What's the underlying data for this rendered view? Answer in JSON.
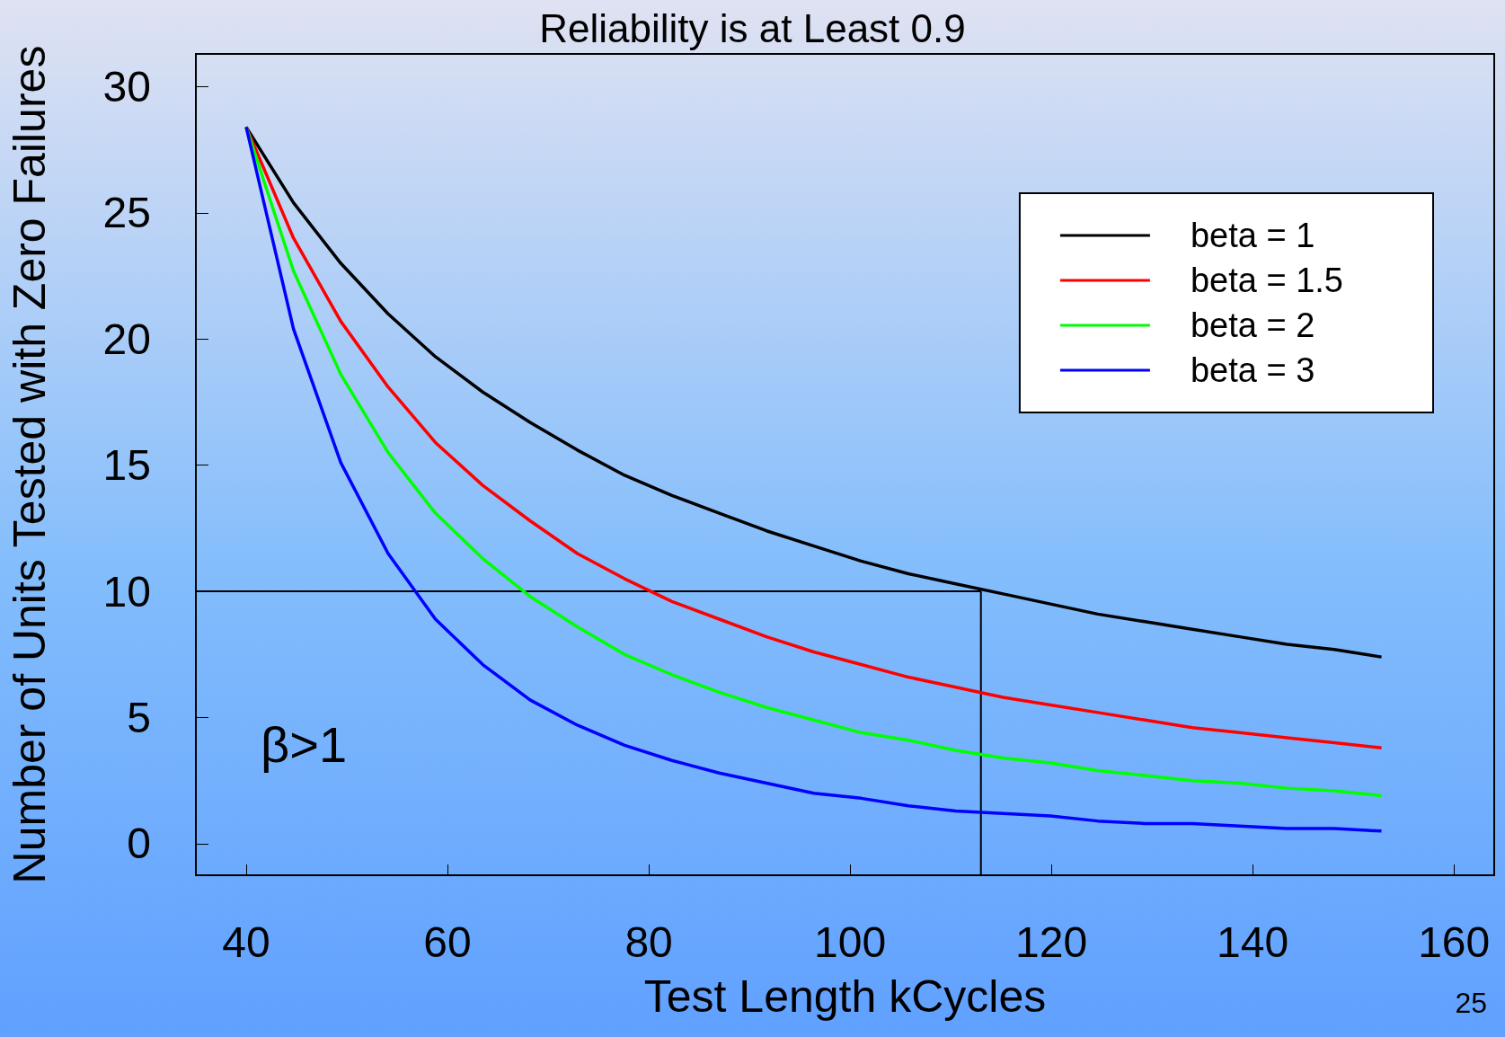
{
  "chart_data": {
    "type": "line",
    "title": "Reliability is at Least 0.9",
    "xlabel": "Test Length kCycles",
    "ylabel": "Number of Units Tested with Zero Failures",
    "x": [
      40,
      44.7,
      49.4,
      54.1,
      58.8,
      63.5,
      68.2,
      72.9,
      77.6,
      82.3,
      87,
      91.7,
      96.4,
      101.1,
      105.8,
      110.5,
      115.2,
      119.9,
      124.6,
      129.3,
      134,
      138.7,
      143.4,
      148.1,
      152.8
    ],
    "series": [
      {
        "name": "beta = 1",
        "color": "#000000",
        "values": [
          28.4,
          25.4,
          23.0,
          21.0,
          19.3,
          17.9,
          16.7,
          15.6,
          14.6,
          13.8,
          13.1,
          12.4,
          11.8,
          11.2,
          10.7,
          10.3,
          9.9,
          9.5,
          9.1,
          8.8,
          8.5,
          8.2,
          7.9,
          7.7,
          7.4
        ]
      },
      {
        "name": "beta = 1.5",
        "color": "#ff0000",
        "values": [
          28.4,
          24.0,
          20.7,
          18.1,
          15.9,
          14.2,
          12.8,
          11.5,
          10.5,
          9.6,
          8.9,
          8.2,
          7.6,
          7.1,
          6.6,
          6.2,
          5.8,
          5.5,
          5.2,
          4.9,
          4.6,
          4.4,
          4.2,
          4.0,
          3.8
        ]
      },
      {
        "name": "beta = 2",
        "color": "#00ff00",
        "values": [
          28.4,
          22.7,
          18.6,
          15.5,
          13.1,
          11.3,
          9.8,
          8.6,
          7.5,
          6.7,
          6.0,
          5.4,
          4.9,
          4.4,
          4.1,
          3.7,
          3.4,
          3.2,
          2.9,
          2.7,
          2.5,
          2.4,
          2.2,
          2.1,
          1.9
        ]
      },
      {
        "name": "beta = 3",
        "color": "#0000ff",
        "values": [
          28.4,
          20.4,
          15.1,
          11.5,
          8.9,
          7.1,
          5.7,
          4.7,
          3.9,
          3.3,
          2.8,
          2.4,
          2.0,
          1.8,
          1.5,
          1.3,
          1.2,
          1.1,
          0.9,
          0.8,
          0.8,
          0.7,
          0.6,
          0.6,
          0.5
        ]
      }
    ],
    "xlim": [
      35,
      164
    ],
    "xticks": [
      40,
      60,
      80,
      100,
      120,
      140,
      160
    ],
    "ylim": [
      -1.25,
      31.3
    ],
    "yticks": [
      0,
      5,
      10,
      15,
      20,
      25,
      30
    ],
    "ref_lines": [
      {
        "axis": "y",
        "value": 10,
        "color": "#000000"
      },
      {
        "axis": "x",
        "value": 113,
        "color": "#000000"
      }
    ],
    "annotations": [
      "β>1",
      "25"
    ],
    "legend": "top right",
    "grid": false,
    "marker": "none",
    "line_style": "solid"
  }
}
